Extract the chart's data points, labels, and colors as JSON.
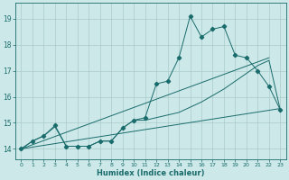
{
  "xlabel": "Humidex (Indice chaleur)",
  "bg_color": "#cce8e8",
  "grid_color": "#aacaca",
  "line_color": "#1a6b6b",
  "xlim": [
    -0.5,
    23.5
  ],
  "ylim": [
    13.6,
    19.6
  ],
  "xticks": [
    0,
    1,
    2,
    3,
    4,
    5,
    6,
    7,
    8,
    9,
    10,
    11,
    12,
    13,
    14,
    15,
    16,
    17,
    18,
    19,
    20,
    21,
    22,
    23
  ],
  "yticks": [
    14,
    15,
    16,
    17,
    18,
    19
  ],
  "line1_x": [
    0,
    1,
    2,
    3,
    4,
    5,
    6,
    7,
    8,
    9,
    10,
    11,
    12,
    13,
    14,
    15,
    16,
    17,
    18,
    19,
    20,
    21,
    22,
    23
  ],
  "line1_y": [
    14.0,
    14.3,
    14.5,
    14.9,
    14.1,
    14.1,
    14.1,
    14.3,
    14.3,
    14.8,
    15.1,
    15.2,
    16.5,
    16.6,
    17.5,
    19.1,
    18.3,
    18.6,
    18.7,
    17.6,
    17.5,
    17.0,
    16.4,
    15.5
  ],
  "line2_x": [
    0,
    1,
    2,
    3,
    4,
    5,
    6,
    7,
    8,
    9,
    10,
    11,
    12,
    13,
    14,
    15,
    16,
    17,
    18,
    19,
    20,
    21,
    22,
    23
  ],
  "line2_y": [
    14.0,
    14.3,
    14.5,
    14.85,
    14.1,
    14.1,
    14.1,
    14.3,
    14.3,
    14.8,
    15.1,
    15.1,
    15.2,
    15.3,
    15.4,
    15.6,
    15.8,
    16.05,
    16.3,
    16.6,
    16.9,
    17.2,
    17.4,
    15.5
  ],
  "trend1_x": [
    0,
    22
  ],
  "trend1_y": [
    14.0,
    17.5
  ],
  "trend2_x": [
    0,
    23
  ],
  "trend2_y": [
    14.0,
    15.55
  ]
}
